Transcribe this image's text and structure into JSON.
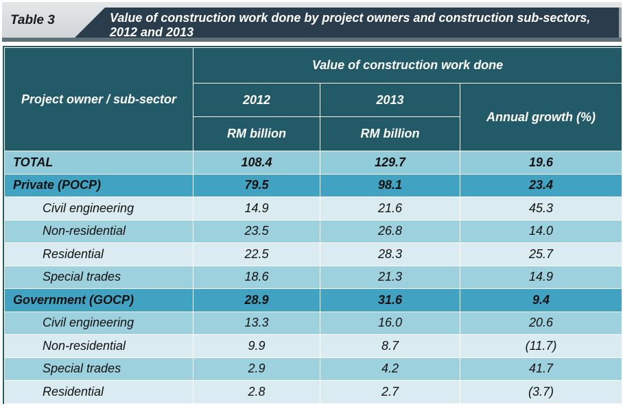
{
  "banner": {
    "table_number": "Table 3",
    "title_line1": "Value of construction work done by project owners and construction sub-sectors,",
    "title_line2": "2012 and 2013"
  },
  "colors": {
    "banner_dark": "#2a3d4c",
    "header_bg": "#235a67",
    "total_row": "#92cbd9",
    "group_row": "#41a3c1",
    "sub_row_light": "#daecf2",
    "sub_row_dark": "#9ed1de"
  },
  "table": {
    "header": {
      "row_label": "Project owner / sub-sector",
      "group_label": "Value of construction work done",
      "year_2012": "2012",
      "year_2013": "2013",
      "unit_2012": "RM billion",
      "unit_2013": "RM billion",
      "growth": "Annual growth (%)"
    },
    "rows": [
      {
        "label": "TOTAL",
        "v2012": "108.4",
        "v2013": "129.7",
        "growth": "19.6",
        "kind": "total"
      },
      {
        "label": "Private (POCP)",
        "v2012": "79.5",
        "v2013": "98.1",
        "growth": "23.4",
        "kind": "group"
      },
      {
        "label": "Civil engineering",
        "v2012": "14.9",
        "v2013": "21.6",
        "growth": "45.3",
        "kind": "sub-light"
      },
      {
        "label": "Non-residential",
        "v2012": "23.5",
        "v2013": "26.8",
        "growth": "14.0",
        "kind": "sub-dark"
      },
      {
        "label": "Residential",
        "v2012": "22.5",
        "v2013": "28.3",
        "growth": "25.7",
        "kind": "sub-light"
      },
      {
        "label": "Special trades",
        "v2012": "18.6",
        "v2013": "21.3",
        "growth": "14.9",
        "kind": "sub-dark"
      },
      {
        "label": "Government (GOCP)",
        "v2012": "28.9",
        "v2013": "31.6",
        "growth": "9.4",
        "kind": "group"
      },
      {
        "label": "Civil engineering",
        "v2012": "13.3",
        "v2013": "16.0",
        "growth": "20.6",
        "kind": "sub-dark"
      },
      {
        "label": "Non-residential",
        "v2012": "9.9",
        "v2013": "8.7",
        "growth": "(11.7)",
        "kind": "sub-light"
      },
      {
        "label": "Special trades",
        "v2012": "2.9",
        "v2013": "4.2",
        "growth": "41.7",
        "kind": "sub-dark"
      },
      {
        "label": "Residential",
        "v2012": "2.8",
        "v2013": "2.7",
        "growth": "(3.7)",
        "kind": "sub-light"
      }
    ]
  }
}
